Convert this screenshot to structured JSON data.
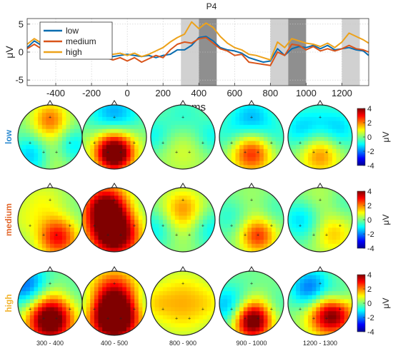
{
  "chart_data": {
    "type": "line",
    "title": "P4",
    "xlabel": "ms",
    "ylabel": "μV",
    "xlim": [
      -560,
      1350
    ],
    "ylim": [
      -6,
      6
    ],
    "xticks": [
      -400,
      -200,
      0,
      200,
      400,
      600,
      800,
      1000,
      1200
    ],
    "yticks": [
      -5,
      0,
      5
    ],
    "grid": true,
    "legend_position": "top-left",
    "series": [
      {
        "name": "low",
        "color": "#0a6db0",
        "points": [
          [
            -560,
            0.8
          ],
          [
            -520,
            2.0
          ],
          [
            -480,
            1.2
          ],
          [
            -440,
            0.6
          ],
          [
            -400,
            1.2
          ],
          [
            -360,
            0.4
          ],
          [
            -320,
            1.0
          ],
          [
            -280,
            0.2
          ],
          [
            -240,
            0.8
          ],
          [
            -200,
            0.4
          ],
          [
            -160,
            0.6
          ],
          [
            -120,
            -0.4
          ],
          [
            -80,
            -0.8
          ],
          [
            -40,
            -0.6
          ],
          [
            0,
            -0.4
          ],
          [
            40,
            -0.6
          ],
          [
            80,
            -0.8
          ],
          [
            120,
            -0.6
          ],
          [
            160,
            -1.0
          ],
          [
            200,
            -0.6
          ],
          [
            240,
            -0.4
          ],
          [
            280,
            0.4
          ],
          [
            320,
            0.4
          ],
          [
            360,
            1.2
          ],
          [
            400,
            2.6
          ],
          [
            440,
            2.8
          ],
          [
            480,
            2.0
          ],
          [
            520,
            0.8
          ],
          [
            560,
            0.4
          ],
          [
            600,
            0.2
          ],
          [
            640,
            -0.2
          ],
          [
            680,
            -1.0
          ],
          [
            720,
            -1.4
          ],
          [
            760,
            -1.8
          ],
          [
            800,
            -1.6
          ],
          [
            840,
            0.6
          ],
          [
            880,
            -0.6
          ],
          [
            920,
            0.6
          ],
          [
            960,
            1.0
          ],
          [
            1000,
            0.8
          ],
          [
            1040,
            1.2
          ],
          [
            1080,
            0.6
          ],
          [
            1120,
            1.2
          ],
          [
            1160,
            0.4
          ],
          [
            1200,
            0.6
          ],
          [
            1240,
            0.8
          ],
          [
            1280,
            0.4
          ],
          [
            1320,
            0.2
          ],
          [
            1350,
            -0.6
          ]
        ]
      },
      {
        "name": "medium",
        "color": "#d9541a",
        "points": [
          [
            -560,
            0.6
          ],
          [
            -520,
            1.4
          ],
          [
            -480,
            0.6
          ],
          [
            -440,
            0.2
          ],
          [
            -400,
            0.8
          ],
          [
            -360,
            -0.2
          ],
          [
            -320,
            0.4
          ],
          [
            -280,
            -0.4
          ],
          [
            -240,
            0.0
          ],
          [
            -200,
            -0.2
          ],
          [
            -160,
            0.2
          ],
          [
            -120,
            -1.0
          ],
          [
            -80,
            -1.4
          ],
          [
            -40,
            -1.0
          ],
          [
            0,
            -1.6
          ],
          [
            40,
            -1.0
          ],
          [
            80,
            -1.8
          ],
          [
            120,
            -1.2
          ],
          [
            160,
            -0.6
          ],
          [
            200,
            -1.0
          ],
          [
            240,
            0.4
          ],
          [
            280,
            1.4
          ],
          [
            320,
            1.8
          ],
          [
            360,
            1.6
          ],
          [
            400,
            2.4
          ],
          [
            440,
            2.6
          ],
          [
            480,
            1.6
          ],
          [
            520,
            0.6
          ],
          [
            560,
            0.2
          ],
          [
            600,
            -0.6
          ],
          [
            640,
            -0.4
          ],
          [
            680,
            -1.8
          ],
          [
            720,
            -2.0
          ],
          [
            760,
            -2.2
          ],
          [
            800,
            -2.4
          ],
          [
            840,
            0.0
          ],
          [
            880,
            -0.6
          ],
          [
            920,
            1.4
          ],
          [
            960,
            1.2
          ],
          [
            1000,
            0.4
          ],
          [
            1040,
            1.0
          ],
          [
            1080,
            0.2
          ],
          [
            1120,
            0.6
          ],
          [
            1160,
            0.2
          ],
          [
            1200,
            0.6
          ],
          [
            1240,
            1.2
          ],
          [
            1280,
            0.6
          ],
          [
            1320,
            0.4
          ],
          [
            1350,
            0.0
          ]
        ]
      },
      {
        "name": "high",
        "color": "#eda21a",
        "points": [
          [
            -560,
            1.4
          ],
          [
            -520,
            2.4
          ],
          [
            -480,
            1.6
          ],
          [
            -440,
            2.6
          ],
          [
            -400,
            1.6
          ],
          [
            -360,
            1.0
          ],
          [
            -320,
            1.6
          ],
          [
            -280,
            0.6
          ],
          [
            -240,
            1.0
          ],
          [
            -200,
            0.2
          ],
          [
            -160,
            0.8
          ],
          [
            -120,
            -0.2
          ],
          [
            -80,
            -0.4
          ],
          [
            -40,
            -0.2
          ],
          [
            0,
            -0.6
          ],
          [
            40,
            -0.2
          ],
          [
            80,
            -0.8
          ],
          [
            120,
            -0.4
          ],
          [
            160,
            0.2
          ],
          [
            200,
            0.8
          ],
          [
            240,
            1.8
          ],
          [
            280,
            2.6
          ],
          [
            320,
            3.2
          ],
          [
            360,
            5.4
          ],
          [
            400,
            4.2
          ],
          [
            440,
            5.2
          ],
          [
            480,
            4.4
          ],
          [
            520,
            2.8
          ],
          [
            560,
            1.6
          ],
          [
            600,
            0.8
          ],
          [
            640,
            0.4
          ],
          [
            680,
            -0.4
          ],
          [
            720,
            -0.6
          ],
          [
            760,
            -1.0
          ],
          [
            800,
            -1.4
          ],
          [
            840,
            1.8
          ],
          [
            880,
            0.8
          ],
          [
            920,
            2.4
          ],
          [
            960,
            2.0
          ],
          [
            1000,
            1.6
          ],
          [
            1040,
            1.4
          ],
          [
            1080,
            1.0
          ],
          [
            1120,
            1.6
          ],
          [
            1160,
            0.8
          ],
          [
            1200,
            1.8
          ],
          [
            1240,
            3.4
          ],
          [
            1280,
            2.8
          ],
          [
            1320,
            2.2
          ],
          [
            1350,
            1.6
          ]
        ]
      }
    ],
    "shaded_windows": [
      {
        "from": 300,
        "to": 400,
        "shade": "light"
      },
      {
        "from": 400,
        "to": 500,
        "shade": "dark"
      },
      {
        "from": 800,
        "to": 900,
        "shade": "light"
      },
      {
        "from": 900,
        "to": 1000,
        "shade": "dark"
      },
      {
        "from": 1200,
        "to": 1300,
        "shade": "light"
      }
    ],
    "topomaps": {
      "rows": [
        {
          "label": "low",
          "color": "#2e8bd0"
        },
        {
          "label": "medium",
          "color": "#e2662a"
        },
        {
          "label": "high",
          "color": "#f2b32c"
        }
      ],
      "windows": [
        "300 - 400",
        "400 - 500",
        "800 - 900",
        "900 - 1000",
        "1200 - 1300"
      ],
      "colorbar": {
        "ticks": [
          4,
          2,
          0,
          -2,
          -4
        ],
        "label": "μV",
        "range": [
          -4,
          4
        ]
      },
      "blobs": [
        [
          [
            [
              0.0,
              -0.55,
              0.4,
              2.0
            ],
            [
              -0.45,
              0.55,
              0.45,
              -2.2
            ],
            [
              0.65,
              0.3,
              0.4,
              -1.5
            ],
            [
              0.0,
              0.5,
              0.5,
              1.6
            ]
          ],
          [
            [
              0.0,
              0.55,
              0.4,
              3.8
            ],
            [
              0.0,
              -0.6,
              0.55,
              -2.0
            ],
            [
              0.0,
              0.2,
              0.5,
              2.0
            ]
          ],
          [
            [
              0.0,
              0.3,
              0.6,
              0.8
            ],
            [
              0.0,
              -0.6,
              0.5,
              -0.8
            ],
            [
              -0.9,
              0.0,
              0.4,
              -1.0
            ],
            [
              0.9,
              0.0,
              0.4,
              -1.0
            ]
          ],
          [
            [
              0.0,
              0.5,
              0.45,
              2.8
            ],
            [
              0.0,
              -0.55,
              0.5,
              -1.6
            ],
            [
              -0.8,
              0.0,
              0.4,
              -0.6
            ],
            [
              0.8,
              0.0,
              0.4,
              -0.6
            ]
          ],
          [
            [
              0.0,
              0.55,
              0.45,
              2.0
            ],
            [
              -0.6,
              -0.2,
              0.45,
              -1.2
            ],
            [
              0.6,
              -0.2,
              0.45,
              -1.2
            ],
            [
              0.0,
              -0.65,
              0.5,
              -0.5
            ]
          ]
        ],
        [
          [
            [
              0.25,
              0.55,
              0.45,
              3.0
            ],
            [
              -0.2,
              -0.6,
              0.5,
              0.8
            ],
            [
              -0.9,
              0.0,
              0.45,
              0.5
            ],
            [
              0.8,
              -0.1,
              0.4,
              -0.2
            ]
          ],
          [
            [
              0.0,
              0.5,
              0.55,
              3.8
            ],
            [
              -0.3,
              -0.45,
              0.5,
              3.0
            ],
            [
              0.55,
              -0.2,
              0.45,
              -0.8
            ],
            [
              0.0,
              0.0,
              0.6,
              1.8
            ]
          ],
          [
            [
              0.0,
              -0.35,
              0.45,
              1.6
            ],
            [
              -0.8,
              0.3,
              0.45,
              -1.2
            ],
            [
              0.8,
              0.3,
              0.45,
              -1.2
            ],
            [
              0.0,
              0.3,
              0.6,
              0.6
            ]
          ],
          [
            [
              0.2,
              0.5,
              0.4,
              2.6
            ],
            [
              -0.6,
              -0.1,
              0.45,
              -0.8
            ],
            [
              0.7,
              -0.3,
              0.4,
              -0.6
            ],
            [
              0.0,
              -0.5,
              0.5,
              0.4
            ]
          ],
          [
            [
              0.4,
              0.45,
              0.45,
              1.4
            ],
            [
              -0.55,
              0.0,
              0.45,
              -1.4
            ],
            [
              0.7,
              -0.5,
              0.4,
              -0.6
            ],
            [
              0.0,
              -0.6,
              0.5,
              0.6
            ]
          ]
        ],
        [
          [
            [
              0.0,
              0.6,
              0.5,
              3.8
            ],
            [
              -0.7,
              -0.5,
              0.5,
              -2.4
            ],
            [
              0.7,
              -0.3,
              0.45,
              -0.6
            ],
            [
              0.0,
              0.15,
              0.55,
              1.6
            ]
          ],
          [
            [
              0.0,
              0.55,
              0.55,
              4.0
            ],
            [
              0.0,
              -0.55,
              0.55,
              1.6
            ],
            [
              -0.85,
              0.0,
              0.35,
              -0.6
            ],
            [
              0.85,
              0.0,
              0.35,
              -0.6
            ],
            [
              0.0,
              0.15,
              0.55,
              2.2
            ]
          ],
          [
            [
              0.0,
              0.0,
              0.7,
              1.6
            ],
            [
              -0.9,
              0.0,
              0.35,
              0.6
            ],
            [
              0.9,
              0.0,
              0.35,
              0.4
            ]
          ],
          [
            [
              0.0,
              0.6,
              0.4,
              3.8
            ],
            [
              0.0,
              -0.5,
              0.5,
              -0.2
            ],
            [
              -0.75,
              0.1,
              0.45,
              -1.6
            ],
            [
              0.7,
              0.1,
              0.4,
              -1.0
            ],
            [
              0.3,
              0.25,
              0.45,
              1.5
            ]
          ],
          [
            [
              0.45,
              0.35,
              0.45,
              3.4
            ],
            [
              -0.3,
              -0.45,
              0.45,
              -2.2
            ],
            [
              0.6,
              -0.2,
              0.3,
              -1.0
            ],
            [
              0.0,
              0.45,
              0.45,
              1.2
            ]
          ]
        ]
      ]
    }
  }
}
